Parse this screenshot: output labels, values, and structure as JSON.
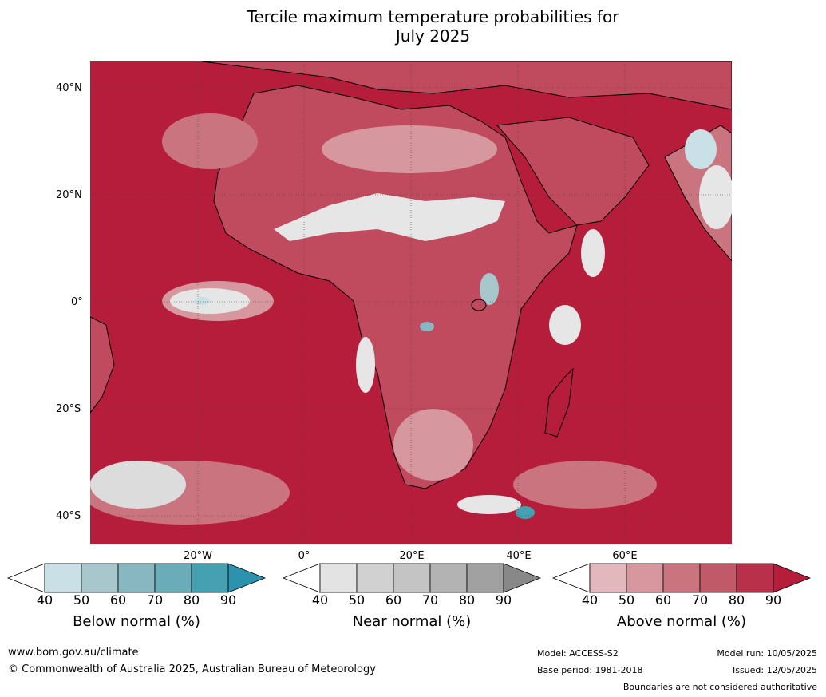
{
  "title": {
    "line1": "Tercile maximum temperature probabilities for",
    "line2": "July 2025"
  },
  "map": {
    "latitude_labels": [
      "40°N",
      "20°N",
      "0°",
      "20°S",
      "40°S"
    ],
    "longitude_labels": [
      "20°W",
      "0°",
      "20°E",
      "40°E",
      "60°E"
    ],
    "colors": {
      "ocean_above_90": "#b51d3b",
      "above_80": "#c04a5e",
      "above_70": "#ca7480",
      "above_60": "#d7979f",
      "above_50": "#e3b8bd",
      "near_normal": "#e6e6e6",
      "below_normal": "#c8e0e6",
      "coastline": "#000000",
      "borders": "#8a8a8a"
    }
  },
  "legends": [
    {
      "title": "Below normal (%)",
      "ticks": [
        "40",
        "50",
        "60",
        "70",
        "80",
        "90"
      ],
      "colors": [
        "#ffffff",
        "#c8e0e6",
        "#a7c7cc",
        "#88b6c1",
        "#6aacb8",
        "#45a0b2",
        "#2c92ad"
      ]
    },
    {
      "title": "Near normal (%)",
      "ticks": [
        "40",
        "50",
        "60",
        "70",
        "80",
        "90"
      ],
      "colors": [
        "#ffffff",
        "#e3e3e3",
        "#d1d1d1",
        "#c4c4c4",
        "#b3b3b3",
        "#a1a1a1",
        "#888888"
      ]
    },
    {
      "title": "Above normal (%)",
      "ticks": [
        "40",
        "50",
        "60",
        "70",
        "80",
        "90"
      ],
      "colors": [
        "#ffffff",
        "#e3b8bd",
        "#d7979f",
        "#ca7480",
        "#c05a68",
        "#b83049",
        "#b51d3b"
      ]
    }
  ],
  "footer": {
    "website": "www.bom.gov.au/climate",
    "copyright": "© Commonwealth of Australia 2025, Australian Bureau of Meteorology",
    "model": "Model: ACCESS-S2",
    "base_period": "Base period: 1981-2018",
    "model_run": "Model run: 10/05/2025",
    "issued": "Issued: 12/05/2025",
    "disclaimer": "Boundaries are not considered authoritative"
  }
}
